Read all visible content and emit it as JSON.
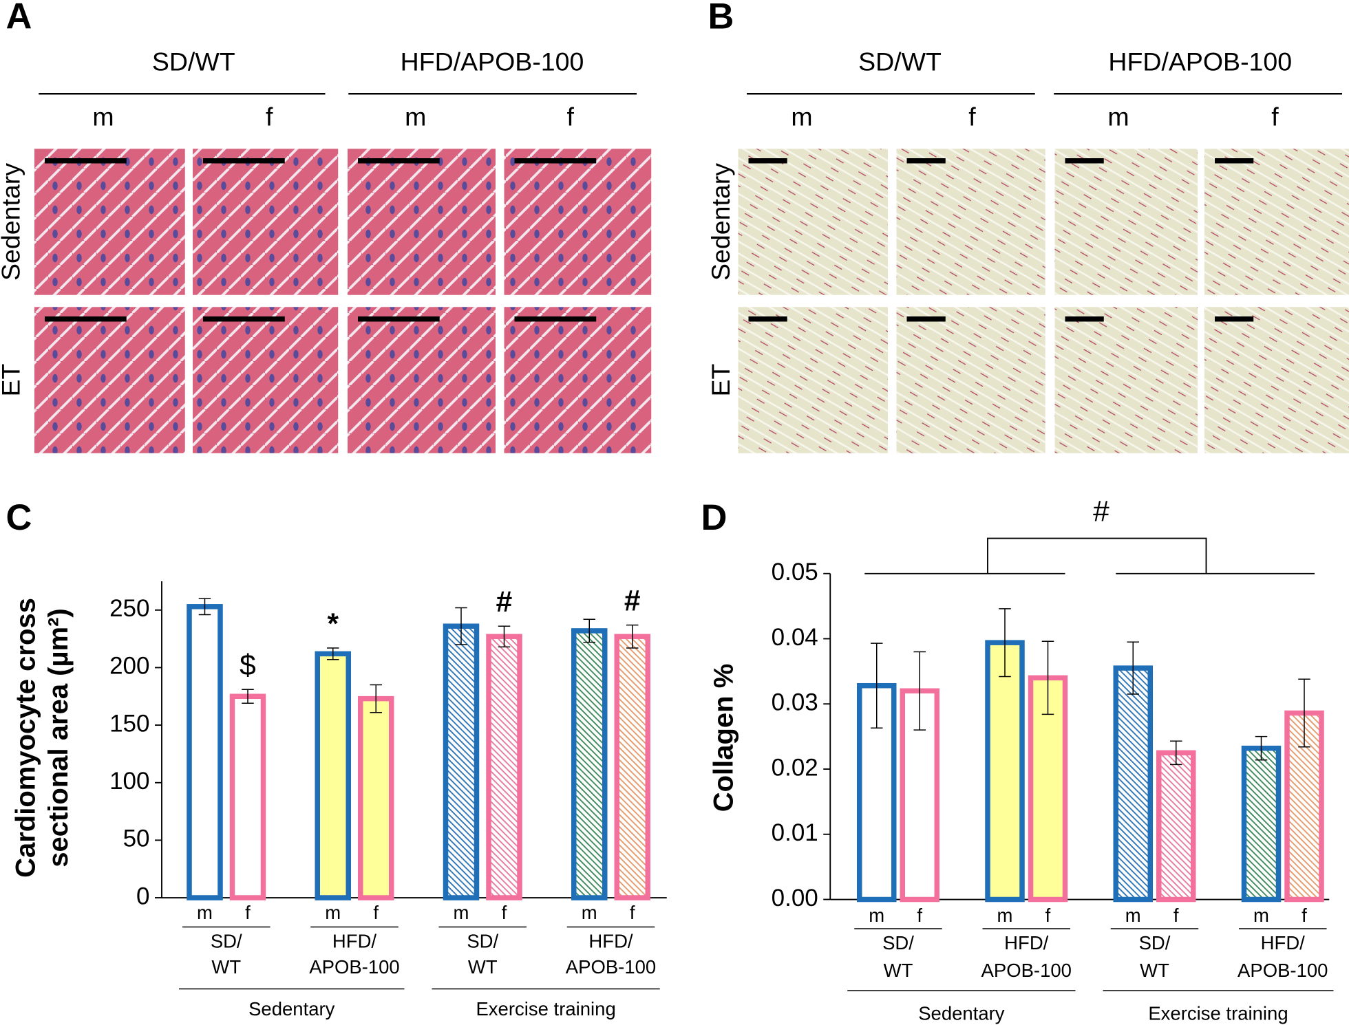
{
  "panels": {
    "A": {
      "label": "A",
      "groups": [
        "SD/WT",
        "HFD/APOB-100"
      ],
      "sexes": [
        "m",
        "f",
        "m",
        "f"
      ],
      "rows": [
        "Sedentary",
        "ET"
      ]
    },
    "B": {
      "label": "B",
      "groups": [
        "SD/WT",
        "HFD/APOB-100"
      ],
      "sexes": [
        "m",
        "f",
        "m",
        "f"
      ],
      "rows": [
        "Sedentary",
        "ET"
      ]
    }
  },
  "chart_data": [
    {
      "type": "bar",
      "label": "C",
      "ylabel": [
        "Cardiomyocyte cross",
        "sectional area (µm²)"
      ],
      "categories": [
        "m",
        "f",
        "m",
        "f",
        "m",
        "f",
        "m",
        "f"
      ],
      "groups": [
        [
          "SD/",
          "WT"
        ],
        [
          "HFD/",
          "APOB-100"
        ],
        [
          "SD/",
          "WT"
        ],
        [
          "HFD/",
          "APOB-100"
        ]
      ],
      "conditions": [
        "Sedentary",
        "Exercise training"
      ],
      "values": [
        253,
        175,
        212,
        173,
        236,
        227,
        232,
        227
      ],
      "errors": [
        7,
        6,
        5,
        12,
        16,
        9,
        10,
        10
      ],
      "annotations": [
        null,
        "$",
        "*",
        null,
        null,
        "#",
        null,
        "#"
      ],
      "edge_colors": [
        "#1f6fb8",
        "#f2709b",
        "#1f6fb8",
        "#f2709b",
        "#1f6fb8",
        "#f2709b",
        "#1f6fb8",
        "#f2709b"
      ],
      "fill_colors": [
        "#ffffff",
        "#ffffff",
        "#ffff99",
        "#ffff99",
        "#2e75b6",
        "#e7799f",
        "#3d8a5a",
        "#e59a6b"
      ],
      "hatched": [
        false,
        false,
        false,
        false,
        true,
        true,
        true,
        true
      ],
      "ylim": [
        0,
        275
      ],
      "yticks": [
        0,
        50,
        100,
        150,
        200,
        250
      ]
    },
    {
      "type": "bar",
      "label": "D",
      "ylabel": [
        "Collagen %"
      ],
      "categories": [
        "m",
        "f",
        "m",
        "f",
        "m",
        "f",
        "m",
        "f"
      ],
      "groups": [
        [
          "SD/",
          "WT"
        ],
        [
          "HFD/",
          "APOB-100"
        ],
        [
          "SD/",
          "WT"
        ],
        [
          "HFD/",
          "APOB-100"
        ]
      ],
      "conditions": [
        "Sedentary",
        "Exercise training"
      ],
      "values": [
        0.0328,
        0.032,
        0.0394,
        0.034,
        0.0355,
        0.0225,
        0.0232,
        0.0286
      ],
      "errors": [
        0.0065,
        0.006,
        0.0052,
        0.0056,
        0.004,
        0.0018,
        0.0018,
        0.0052
      ],
      "comparison": "#",
      "edge_colors": [
        "#1f6fb8",
        "#f2709b",
        "#1f6fb8",
        "#f2709b",
        "#1f6fb8",
        "#f2709b",
        "#1f6fb8",
        "#f2709b"
      ],
      "fill_colors": [
        "#ffffff",
        "#ffffff",
        "#ffff99",
        "#ffff99",
        "#2e75b6",
        "#e7799f",
        "#3d8a5a",
        "#e59a6b"
      ],
      "hatched": [
        false,
        false,
        false,
        false,
        true,
        true,
        true,
        true
      ],
      "ylim": [
        0,
        0.05
      ],
      "yticks": [
        {
          "value": 0,
          "label": "0.00"
        },
        {
          "value": 0.01,
          "label": "0.01"
        },
        {
          "value": 0.02,
          "label": "0.02"
        },
        {
          "value": 0.03,
          "label": "0.03"
        },
        {
          "value": 0.04,
          "label": "0.04"
        },
        {
          "value": 0.05,
          "label": "0.05"
        }
      ]
    }
  ]
}
